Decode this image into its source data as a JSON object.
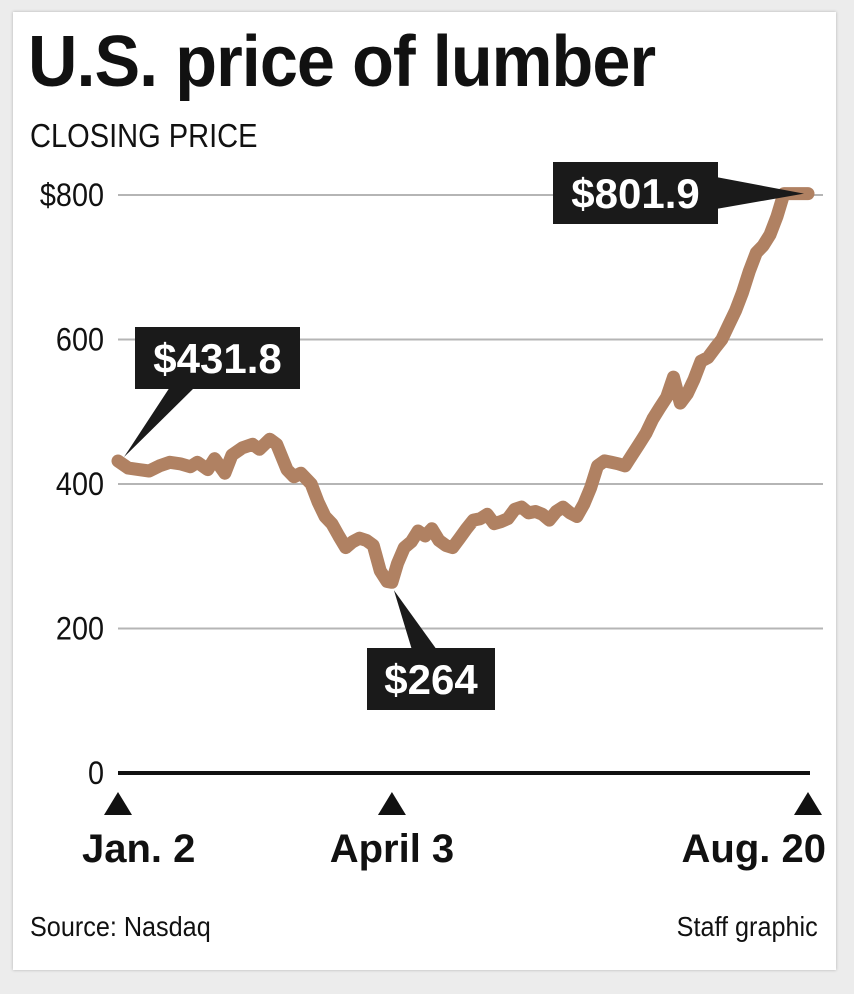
{
  "title": "U.S. price of lumber",
  "subtitle": "CLOSING PRICE",
  "source": "Source: Nasdaq",
  "credit": "Staff graphic",
  "colors": {
    "line": "#b08162",
    "text": "#111111",
    "grid": "#b5b5b5",
    "label_bg": "#1a1a1a",
    "label_text": "#ffffff"
  },
  "chart_data": {
    "type": "line",
    "title": "U.S. price of lumber",
    "subtitle": "CLOSING PRICE",
    "xlabel": "",
    "ylabel": "",
    "ylim": [
      0,
      800
    ],
    "grid": true,
    "y_ticks": [
      {
        "value": 800,
        "label": "$800"
      },
      {
        "value": 600,
        "label": "600"
      },
      {
        "value": 400,
        "label": "400"
      },
      {
        "value": 200,
        "label": "200"
      },
      {
        "value": 0,
        "label": "0"
      }
    ],
    "x_ticks": [
      {
        "t": 0,
        "label": "Jan. 2"
      },
      {
        "t": 0.397,
        "label": "April 3"
      },
      {
        "t": 1,
        "label": "Aug. 20"
      }
    ],
    "series": [
      {
        "name": "",
        "x": [
          0,
          0.015,
          0.03,
          0.045,
          0.06,
          0.075,
          0.09,
          0.105,
          0.115,
          0.13,
          0.14,
          0.155,
          0.165,
          0.18,
          0.195,
          0.205,
          0.22,
          0.23,
          0.245,
          0.255,
          0.265,
          0.28,
          0.29,
          0.3,
          0.31,
          0.32,
          0.33,
          0.34,
          0.35,
          0.36,
          0.37,
          0.38,
          0.39,
          0.397,
          0.405,
          0.415,
          0.425,
          0.435,
          0.445,
          0.455,
          0.465,
          0.475,
          0.485,
          0.495,
          0.505,
          0.515,
          0.525,
          0.535,
          0.545,
          0.555,
          0.565,
          0.575,
          0.585,
          0.595,
          0.605,
          0.615,
          0.625,
          0.635,
          0.645,
          0.655,
          0.665,
          0.675,
          0.685,
          0.695,
          0.705,
          0.715,
          0.725,
          0.735,
          0.745,
          0.755,
          0.765,
          0.775,
          0.785,
          0.795,
          0.805,
          0.815,
          0.825,
          0.835,
          0.845,
          0.855,
          0.865,
          0.875,
          0.885,
          0.895,
          0.905,
          0.915,
          0.925,
          0.935,
          0.945,
          0.955,
          0.965,
          0.975,
          0.985,
          1.0
        ],
        "values": [
          431.8,
          422,
          420,
          418,
          425,
          430,
          428,
          424,
          430,
          420,
          435,
          415,
          440,
          450,
          455,
          448,
          462,
          455,
          420,
          410,
          415,
          400,
          375,
          355,
          345,
          328,
          312,
          320,
          325,
          322,
          315,
          280,
          265,
          264,
          290,
          312,
          320,
          335,
          328,
          338,
          322,
          315,
          312,
          325,
          338,
          350,
          352,
          358,
          345,
          348,
          352,
          365,
          368,
          360,
          362,
          358,
          350,
          362,
          368,
          360,
          355,
          372,
          395,
          425,
          432,
          430,
          428,
          425,
          440,
          455,
          470,
          490,
          505,
          520,
          548,
          512,
          525,
          545,
          570,
          575,
          588,
          600,
          620,
          640,
          665,
          695,
          720,
          730,
          745,
          770,
          801.9,
          801.9,
          801.9,
          801.9
        ]
      }
    ],
    "annotations": [
      {
        "label": "$431.8",
        "t": 0,
        "value": 431.8
      },
      {
        "label": "$264",
        "t": 0.397,
        "value": 264
      },
      {
        "label": "$801.9",
        "t": 1,
        "value": 801.9
      }
    ]
  }
}
